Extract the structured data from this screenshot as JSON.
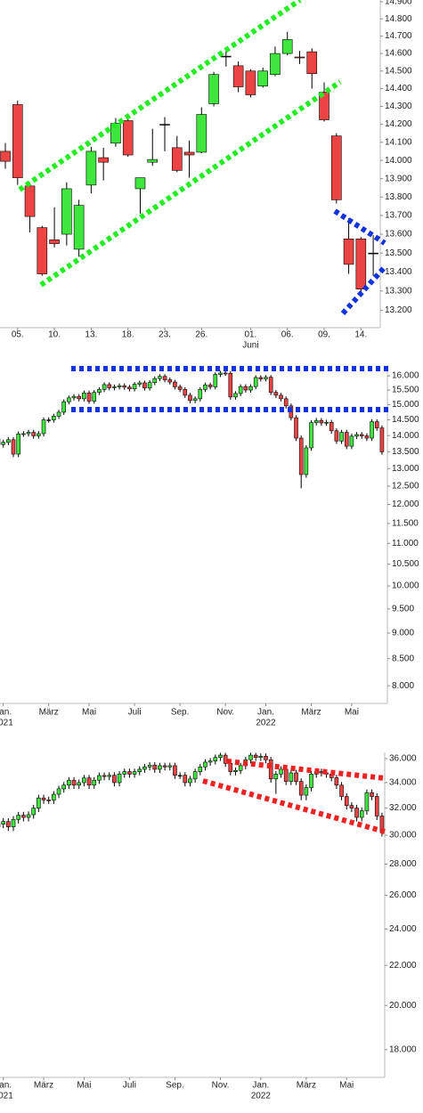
{
  "chart_data": [
    {
      "type": "candlestick",
      "log_scale": true,
      "up_color": "#3ee63e",
      "down_color": "#ec4444",
      "ylim": [
        13110,
        14910
      ],
      "yticks": [
        {
          "value": 13200,
          "label": "13.200"
        },
        {
          "value": 13300,
          "label": "13.300"
        },
        {
          "value": 13400,
          "label": "13.400"
        },
        {
          "value": 13500,
          "label": "13.500"
        },
        {
          "value": 13600,
          "label": "13.600"
        },
        {
          "value": 13700,
          "label": "13.700"
        },
        {
          "value": 13800,
          "label": "13.800"
        },
        {
          "value": 13900,
          "label": "13.900"
        },
        {
          "value": 14000,
          "label": "14.000"
        },
        {
          "value": 14100,
          "label": "14.100"
        },
        {
          "value": 14200,
          "label": "14.200"
        },
        {
          "value": 14300,
          "label": "14.300"
        },
        {
          "value": 14400,
          "label": "14.400"
        },
        {
          "value": 14500,
          "label": "14.500"
        },
        {
          "value": 14600,
          "label": "14.600"
        },
        {
          "value": 14700,
          "label": "14.700"
        },
        {
          "value": 14800,
          "label": "14.800"
        },
        {
          "value": 14900,
          "label": "14.900"
        }
      ],
      "xticks": [
        {
          "value": 1,
          "label": "05."
        },
        {
          "value": 4,
          "label": "10."
        },
        {
          "value": 7,
          "label": "13."
        },
        {
          "value": 10,
          "label": "18."
        },
        {
          "value": 13,
          "label": "23."
        },
        {
          "value": 16,
          "label": "26."
        },
        {
          "value": 20,
          "label": "01.",
          "sublabel": "Juni"
        },
        {
          "value": 23,
          "label": "06."
        },
        {
          "value": 26,
          "label": "09."
        },
        {
          "value": 29,
          "label": "14."
        }
      ],
      "open": [
        14050,
        14310,
        13860,
        13635,
        13570,
        13600,
        13520,
        13865,
        14015,
        14095,
        14220,
        13845,
        13990,
        14200,
        14070,
        14045,
        14045,
        14315,
        14585,
        14530,
        14500,
        14415,
        14480,
        14600,
        14580,
        14610,
        14380,
        14135,
        13575,
        13575,
        13500
      ],
      "high": [
        14096,
        14332,
        13880,
        13645,
        13745,
        13880,
        13785,
        14075,
        14070,
        14235,
        14245,
        13905,
        14175,
        14240,
        14135,
        14110,
        14295,
        14495,
        14635,
        14555,
        14510,
        14520,
        14640,
        14725,
        14615,
        14630,
        14435,
        14150,
        13685,
        13585,
        13595
      ],
      "low": [
        13954,
        13866,
        13610,
        13380,
        13530,
        13540,
        13480,
        13820,
        13890,
        14075,
        14020,
        13710,
        13970,
        14050,
        13935,
        13905,
        14040,
        14300,
        14525,
        14380,
        14350,
        14405,
        14470,
        14590,
        14540,
        14400,
        14215,
        13765,
        13390,
        13280,
        13380
      ],
      "close": [
        13995,
        13905,
        13695,
        13390,
        13550,
        13845,
        13755,
        14050,
        13990,
        14205,
        14030,
        13905,
        14005,
        14200,
        13945,
        14030,
        14255,
        14480,
        14585,
        14410,
        14365,
        14500,
        14600,
        14680,
        14575,
        14485,
        14225,
        13785,
        13440,
        13310,
        13500
      ]
    },
    {
      "type": "candlestick",
      "log_scale": true,
      "up_color": "#3ee63e",
      "down_color": "#ec4444",
      "ylim": [
        7690,
        16390
      ],
      "yticks": [
        {
          "value": 8000,
          "label": "8.000"
        },
        {
          "value": 8500,
          "label": "8.500"
        },
        {
          "value": 9000,
          "label": "9.000"
        },
        {
          "value": 9500,
          "label": "9.500"
        },
        {
          "value": 10000,
          "label": "10.000"
        },
        {
          "value": 10500,
          "label": "10.500"
        },
        {
          "value": 11000,
          "label": "11.000"
        },
        {
          "value": 11500,
          "label": "11.500"
        },
        {
          "value": 12000,
          "label": "12.000"
        },
        {
          "value": 12500,
          "label": "12.500"
        },
        {
          "value": 13000,
          "label": "13.000"
        },
        {
          "value": 13500,
          "label": "13.500"
        },
        {
          "value": 14000,
          "label": "14.000"
        },
        {
          "value": 14500,
          "label": "14.500"
        },
        {
          "value": 15000,
          "label": "15.000"
        },
        {
          "value": 15500,
          "label": "15.500"
        },
        {
          "value": 16000,
          "label": "16.000"
        }
      ],
      "xticks": [
        {
          "value": 1,
          "label": "Jan.",
          "sublabel": "2021"
        },
        {
          "value": 10,
          "label": "März"
        },
        {
          "value": 18,
          "label": "Mai"
        },
        {
          "value": 27,
          "label": "Juli"
        },
        {
          "value": 36,
          "label": "Sep."
        },
        {
          "value": 45,
          "label": "Nov."
        },
        {
          "value": 53,
          "label": "Jan.",
          "sublabel": "2022"
        },
        {
          "value": 62,
          "label": "März"
        },
        {
          "value": 70,
          "label": "Mai"
        }
      ],
      "open": [
        13900,
        13720,
        13790,
        13870,
        13430,
        14050,
        14060,
        14100,
        13990,
        14060,
        14500,
        14500,
        14620,
        14750,
        15100,
        15230,
        15280,
        15200,
        15400,
        15120,
        15420,
        15520,
        15690,
        15580,
        15610,
        15650,
        15600,
        15540,
        15700,
        15750,
        15570,
        15760,
        15900,
        15980,
        15860,
        15780,
        15610,
        15520,
        15320,
        15140,
        15200,
        15520,
        15680,
        15610,
        16050,
        16100,
        16090,
        15260,
        15380,
        15620,
        15500,
        15620,
        15940,
        15890,
        15950,
        15420,
        15320,
        15200,
        14960,
        14570,
        13920,
        12830,
        13620,
        14410,
        14480,
        14400,
        14420,
        14150,
        13830,
        14100,
        13670,
        13980,
        14030,
        13990,
        13920,
        14440,
        14240
      ],
      "high": [
        13980,
        13870,
        13950,
        13950,
        14130,
        14140,
        14180,
        14180,
        14140,
        14580,
        14580,
        14700,
        14830,
        15180,
        15310,
        15360,
        15360,
        15480,
        15480,
        15500,
        15600,
        15770,
        15770,
        15690,
        15730,
        15730,
        15680,
        15780,
        15830,
        15830,
        15840,
        15980,
        16060,
        16060,
        15940,
        15860,
        15690,
        15600,
        15400,
        15280,
        15600,
        15760,
        15760,
        16130,
        16180,
        16180,
        16170,
        15460,
        15700,
        15700,
        15700,
        16020,
        16020,
        16030,
        16030,
        15500,
        15400,
        15280,
        15040,
        14650,
        14000,
        13700,
        14490,
        14560,
        14560,
        14500,
        14500,
        14230,
        14180,
        14180,
        14060,
        14110,
        14110,
        14070,
        14520,
        14520,
        14320
      ],
      "low": [
        13630,
        13630,
        13700,
        13340,
        13340,
        13960,
        13970,
        13900,
        13900,
        13970,
        14410,
        14410,
        14530,
        14660,
        15010,
        15140,
        15110,
        15110,
        15030,
        15030,
        15330,
        15430,
        15490,
        15490,
        15520,
        15510,
        15450,
        15450,
        15610,
        15480,
        15480,
        15670,
        15810,
        15770,
        15690,
        15520,
        15430,
        15230,
        15050,
        15050,
        15110,
        15430,
        15520,
        15520,
        15960,
        16000,
        15170,
        15170,
        15290,
        15410,
        15410,
        15530,
        15800,
        15800,
        15330,
        15230,
        15110,
        14870,
        14480,
        13830,
        12440,
        12740,
        13530,
        14320,
        14310,
        14310,
        14060,
        13740,
        13740,
        13580,
        13580,
        13890,
        13900,
        13830,
        13830,
        14150,
        13410
      ],
      "close": [
        13720,
        13790,
        13870,
        13430,
        14050,
        14060,
        14100,
        13990,
        14060,
        14500,
        14500,
        14620,
        14750,
        15100,
        15230,
        15280,
        15200,
        15400,
        15120,
        15420,
        15520,
        15690,
        15580,
        15610,
        15650,
        15600,
        15540,
        15700,
        15750,
        15570,
        15760,
        15900,
        15980,
        15860,
        15780,
        15610,
        15520,
        15320,
        15140,
        15200,
        15520,
        15680,
        15610,
        16050,
        16100,
        16090,
        15260,
        15380,
        15620,
        15500,
        15620,
        15940,
        15890,
        15950,
        15420,
        15320,
        15200,
        14960,
        14570,
        13920,
        12830,
        13620,
        14410,
        14480,
        14400,
        14420,
        14150,
        13830,
        14100,
        13670,
        13980,
        14030,
        13990,
        13920,
        14440,
        14240,
        13500
      ]
    },
    {
      "type": "candlestick",
      "log_scale": true,
      "up_color": "#3ee63e",
      "down_color": "#ec4444",
      "ylim": [
        16850,
        36540
      ],
      "yticks": [
        {
          "value": 18000,
          "label": "18.000"
        },
        {
          "value": 20000,
          "label": "20.000"
        },
        {
          "value": 22000,
          "label": "22.000"
        },
        {
          "value": 24000,
          "label": "24.000"
        },
        {
          "value": 26000,
          "label": "26.000"
        },
        {
          "value": 28000,
          "label": "28.000"
        },
        {
          "value": 30000,
          "label": "30.000"
        },
        {
          "value": 32000,
          "label": "32.000"
        },
        {
          "value": 34000,
          "label": "34.000"
        },
        {
          "value": 36000,
          "label": "36.000"
        }
      ],
      "xticks": [
        {
          "value": 1,
          "label": "Jan.",
          "sublabel": "2021"
        },
        {
          "value": 9,
          "label": "März"
        },
        {
          "value": 17,
          "label": "Mai"
        },
        {
          "value": 26,
          "label": "Juli"
        },
        {
          "value": 35,
          "label": "Sep."
        },
        {
          "value": 44,
          "label": "Nov."
        },
        {
          "value": 52,
          "label": "Jan.",
          "sublabel": "2022"
        },
        {
          "value": 61,
          "label": "März"
        },
        {
          "value": 69,
          "label": "Mai"
        }
      ],
      "open": [
        30600,
        30800,
        30990,
        30600,
        31150,
        31460,
        31300,
        31500,
        32000,
        32780,
        32630,
        32620,
        33070,
        33500,
        33800,
        34200,
        33800,
        34000,
        34380,
        33800,
        34200,
        34580,
        34500,
        34600,
        34000,
        34700,
        34900,
        34700,
        34900,
        35100,
        35300,
        35450,
        35100,
        35400,
        35300,
        35400,
        34600,
        34600,
        34000,
        34300,
        34900,
        35300,
        35700,
        35800,
        36100,
        36300,
        35600,
        34900,
        35000,
        35400,
        35900,
        36300,
        36100,
        36200,
        35900,
        34300,
        34700,
        35100,
        34100,
        34800,
        34100,
        33000,
        33600,
        34700,
        34900,
        34800,
        34700,
        34400,
        33800,
        32900,
        32200,
        32000,
        31300,
        31800,
        33200,
        32900,
        31400
      ],
      "high": [
        31050,
        31240,
        31240,
        31400,
        31710,
        31710,
        31750,
        32250,
        33030,
        33030,
        32880,
        33320,
        33750,
        34050,
        34450,
        34450,
        34250,
        34630,
        34630,
        34450,
        34830,
        34830,
        34850,
        34850,
        34950,
        35150,
        35150,
        35150,
        35350,
        35550,
        35700,
        35700,
        35650,
        35650,
        35650,
        35650,
        34850,
        34850,
        34550,
        35150,
        35550,
        35950,
        36050,
        36350,
        36500,
        36500,
        35850,
        35250,
        35650,
        36150,
        36500,
        36500,
        36450,
        36450,
        36150,
        34950,
        35350,
        35350,
        35050,
        35050,
        34350,
        33850,
        34950,
        35150,
        35150,
        35050,
        34950,
        34650,
        34050,
        33150,
        32450,
        32250,
        32050,
        33450,
        33450,
        33150,
        31650
      ],
      "low": [
        30300,
        30500,
        30300,
        30300,
        30850,
        31000,
        31000,
        31200,
        31700,
        32330,
        32320,
        32320,
        32770,
        33200,
        33500,
        33500,
        33500,
        33700,
        33500,
        33500,
        33900,
        34200,
        34200,
        33700,
        33700,
        34400,
        34400,
        34400,
        34600,
        34800,
        35000,
        34800,
        34800,
        35000,
        35000,
        34300,
        34300,
        33700,
        33700,
        34000,
        34600,
        35000,
        35400,
        35500,
        35800,
        35300,
        34600,
        34600,
        34700,
        35100,
        35600,
        35800,
        35800,
        35600,
        34000,
        33100,
        34400,
        33800,
        33800,
        33800,
        32600,
        32600,
        33300,
        34400,
        34500,
        34400,
        34100,
        33500,
        32600,
        31900,
        31700,
        31000,
        31000,
        31500,
        32600,
        31100,
        29900
      ],
      "close": [
        30800,
        30990,
        30600,
        31150,
        31460,
        31300,
        31500,
        32000,
        32780,
        32630,
        32620,
        33070,
        33500,
        33800,
        34200,
        33800,
        34000,
        34380,
        33800,
        34200,
        34580,
        34500,
        34600,
        34000,
        34700,
        34900,
        34700,
        34900,
        35100,
        35300,
        35450,
        35100,
        35400,
        35300,
        35400,
        34600,
        34600,
        34000,
        34300,
        34900,
        35300,
        35700,
        35800,
        36100,
        36300,
        35600,
        34900,
        35000,
        35400,
        35900,
        36300,
        36100,
        36200,
        35900,
        34300,
        34700,
        35100,
        34100,
        34800,
        34100,
        33000,
        33600,
        34700,
        34900,
        34800,
        34700,
        34400,
        33800,
        32900,
        32200,
        32000,
        31300,
        31800,
        33200,
        32900,
        31400,
        30200
      ]
    }
  ]
}
